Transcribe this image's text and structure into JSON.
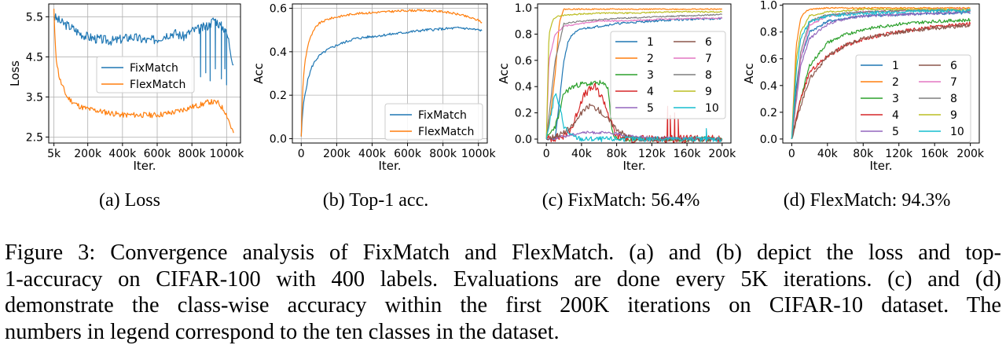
{
  "caption": {
    "lines": [
      "Figure 3: Convergence analysis of FixMatch and FlexMatch. (a) and (b) depict the loss and top-",
      "1-accuracy on CIFAR-100 with 400 labels. Evaluations are done every 5K iterations. (c) and (d)",
      "demonstrate the class-wise accuracy within the first 200K iterations on CIFAR-10 dataset. The",
      "numbers in legend correspond to the ten classes in the dataset."
    ]
  },
  "colors": {
    "c1": "#1f77b4",
    "c2": "#ff7f0e",
    "c3": "#2ca02c",
    "c4": "#d62728",
    "c5": "#9467bd",
    "c6": "#8c564b",
    "c7": "#e377c2",
    "c8": "#7f7f7f",
    "c9": "#bcbd22",
    "c10": "#17becf"
  },
  "chart_data": [
    {
      "id": "a",
      "type": "line",
      "subcaption": "(a) Loss",
      "xlabel": "Iter.",
      "ylabel": "Loss",
      "xticks": [
        5,
        200,
        400,
        600,
        800,
        1000
      ],
      "xtick_labels": [
        "5k",
        "200k",
        "400k",
        "600k",
        "800k",
        "1000k"
      ],
      "yticks": [
        2.5,
        3.5,
        4.5,
        5.5
      ],
      "ytick_labels": [
        "2.5",
        "3.5",
        "4.5",
        "5.5"
      ],
      "xlim": [
        -25,
        1080
      ],
      "ylim": [
        2.35,
        5.82
      ],
      "grid": true,
      "legend_position": "center",
      "series": [
        {
          "name": "FixMatch",
          "color": "#1f77b4",
          "noise": 0.12,
          "seed": 3,
          "x": [
            5,
            20,
            50,
            100,
            150,
            200,
            250,
            300,
            350,
            400,
            450,
            500,
            550,
            600,
            650,
            700,
            750,
            800,
            850,
            900,
            930,
            960,
            990,
            1010,
            1025,
            1040
          ],
          "y": [
            5.5,
            5.45,
            5.35,
            5.25,
            5.1,
            5.0,
            4.95,
            4.92,
            4.9,
            4.95,
            5.0,
            4.95,
            4.9,
            4.95,
            5.05,
            5.1,
            5.0,
            5.15,
            5.2,
            5.3,
            5.45,
            5.3,
            5.2,
            4.95,
            4.6,
            4.3
          ]
        },
        {
          "name": "FlexMatch",
          "color": "#ff7f0e",
          "noise": 0.07,
          "seed": 11,
          "x": [
            5,
            10,
            20,
            35,
            50,
            80,
            120,
            160,
            200,
            300,
            400,
            500,
            600,
            700,
            800,
            850,
            900,
            950,
            990,
            1010,
            1025,
            1040
          ],
          "y": [
            5.7,
            5.0,
            4.4,
            4.0,
            3.8,
            3.5,
            3.35,
            3.25,
            3.2,
            3.12,
            3.05,
            3.05,
            3.05,
            3.12,
            3.25,
            3.3,
            3.38,
            3.35,
            3.15,
            2.95,
            2.75,
            2.6
          ]
        }
      ],
      "annotations": [
        {
          "series": 0,
          "spikes": [
            [
              850,
              4.0
            ],
            [
              880,
              4.1
            ],
            [
              905,
              3.9
            ],
            [
              935,
              4.2
            ],
            [
              970,
              3.95
            ],
            [
              990,
              4.2
            ],
            [
              1000,
              3.8
            ]
          ]
        }
      ]
    },
    {
      "id": "b",
      "type": "line",
      "subcaption": "(b) Top-1 acc.",
      "xlabel": "Iter.",
      "ylabel": "Acc",
      "xticks": [
        0,
        200,
        400,
        600,
        800,
        1000
      ],
      "xtick_labels": [
        "0",
        "200k",
        "400k",
        "600k",
        "800k",
        "1000k"
      ],
      "yticks": [
        0.0,
        0.2,
        0.4,
        0.6
      ],
      "ytick_labels": [
        "0.0",
        "0.2",
        "0.4",
        "0.6"
      ],
      "xlim": [
        -50,
        1050
      ],
      "ylim": [
        -0.02,
        0.62
      ],
      "grid": true,
      "legend_position": "lower right",
      "series": [
        {
          "name": "FixMatch",
          "color": "#1f77b4",
          "noise": 0.006,
          "seed": 5,
          "x": [
            0,
            5,
            10,
            20,
            40,
            60,
            80,
            100,
            150,
            200,
            300,
            400,
            500,
            600,
            700,
            800,
            900,
            1000,
            1020
          ],
          "y": [
            0.01,
            0.08,
            0.14,
            0.2,
            0.28,
            0.33,
            0.36,
            0.38,
            0.41,
            0.43,
            0.46,
            0.47,
            0.48,
            0.49,
            0.5,
            0.505,
            0.51,
            0.5,
            0.497
          ]
        },
        {
          "name": "FlexMatch",
          "color": "#ff7f0e",
          "noise": 0.005,
          "seed": 9,
          "x": [
            0,
            5,
            10,
            20,
            40,
            60,
            80,
            100,
            150,
            200,
            300,
            400,
            500,
            600,
            700,
            800,
            900,
            1000,
            1020
          ],
          "y": [
            0.01,
            0.15,
            0.25,
            0.35,
            0.44,
            0.48,
            0.51,
            0.53,
            0.55,
            0.56,
            0.575,
            0.58,
            0.585,
            0.59,
            0.59,
            0.585,
            0.57,
            0.545,
            0.535
          ]
        }
      ]
    },
    {
      "id": "c",
      "type": "line",
      "subcaption": "(c) FixMatch: 56.4%",
      "xlabel": "Iter.",
      "ylabel": "Acc",
      "xticks": [
        0,
        40,
        80,
        120,
        160,
        200
      ],
      "xtick_labels": [
        "0",
        "40k",
        "80k",
        "120k",
        "160k",
        "200k"
      ],
      "yticks": [
        0.0,
        0.2,
        0.4,
        0.6,
        0.8,
        1.0
      ],
      "ytick_labels": [
        "0.0",
        "0.2",
        "0.4",
        "0.6",
        "0.8",
        "1.0"
      ],
      "xlim": [
        -10,
        210
      ],
      "ylim": [
        -0.03,
        1.03
      ],
      "grid": false,
      "legend_position": "right",
      "series": [
        {
          "name": "1",
          "color": "#1f77b4",
          "noise": 0.008,
          "seed": 21,
          "x": [
            0,
            10,
            15,
            20,
            25,
            30,
            40,
            60,
            80,
            100,
            120,
            150,
            200
          ],
          "y": [
            0.0,
            0.0,
            0.3,
            0.6,
            0.75,
            0.8,
            0.84,
            0.86,
            0.88,
            0.89,
            0.9,
            0.91,
            0.92
          ]
        },
        {
          "name": "2",
          "color": "#ff7f0e",
          "noise": 0.004,
          "seed": 22,
          "x": [
            0,
            5,
            10,
            15,
            20,
            40,
            80,
            120,
            160,
            200
          ],
          "y": [
            0.0,
            0.2,
            0.5,
            0.9,
            0.99,
            0.99,
            0.99,
            0.99,
            0.99,
            0.99
          ]
        },
        {
          "name": "3",
          "color": "#2ca02c",
          "noise": 0.02,
          "seed": 23,
          "x": [
            0,
            5,
            10,
            15,
            20,
            30,
            40,
            50,
            60,
            70,
            75,
            80,
            100,
            150,
            200
          ],
          "y": [
            0.0,
            0.05,
            0.1,
            0.2,
            0.35,
            0.4,
            0.42,
            0.42,
            0.43,
            0.4,
            0.05,
            0.0,
            0.0,
            0.0,
            0.0
          ]
        },
        {
          "name": "4",
          "color": "#d62728",
          "noise": 0.03,
          "seed": 24,
          "x": [
            0,
            20,
            30,
            35,
            40,
            45,
            50,
            55,
            60,
            65,
            70,
            75,
            80,
            100,
            200
          ],
          "y": [
            0.0,
            0.02,
            0.1,
            0.2,
            0.3,
            0.35,
            0.38,
            0.4,
            0.35,
            0.3,
            0.2,
            0.1,
            0.02,
            0.0,
            0.0
          ]
        },
        {
          "name": "5",
          "color": "#9467bd",
          "noise": 0.01,
          "seed": 25,
          "x": [
            0,
            20,
            40,
            60,
            80,
            100,
            120,
            200
          ],
          "y": [
            0.0,
            0.02,
            0.05,
            0.05,
            0.04,
            0.02,
            0.01,
            0.0
          ]
        },
        {
          "name": "6",
          "color": "#8c564b",
          "noise": 0.02,
          "seed": 26,
          "x": [
            0,
            20,
            30,
            40,
            50,
            60,
            70,
            80,
            90,
            100,
            200
          ],
          "y": [
            0.0,
            0.05,
            0.1,
            0.2,
            0.26,
            0.22,
            0.15,
            0.08,
            0.03,
            0.0,
            0.0
          ]
        },
        {
          "name": "7",
          "color": "#e377c2",
          "noise": 0.005,
          "seed": 27,
          "x": [
            0,
            3,
            10,
            20,
            40,
            60,
            80,
            120,
            160,
            200
          ],
          "y": [
            0.0,
            0.6,
            0.8,
            0.86,
            0.88,
            0.9,
            0.9,
            0.91,
            0.92,
            0.92
          ]
        },
        {
          "name": "8",
          "color": "#7f7f7f",
          "noise": 0.005,
          "seed": 28,
          "x": [
            0,
            10,
            20,
            40,
            80,
            120,
            160,
            200
          ],
          "y": [
            0.0,
            0.6,
            0.88,
            0.9,
            0.92,
            0.93,
            0.94,
            0.95
          ]
        },
        {
          "name": "9",
          "color": "#bcbd22",
          "noise": 0.005,
          "seed": 29,
          "x": [
            0,
            3,
            8,
            15,
            30,
            60,
            100,
            140,
            200
          ],
          "y": [
            0.0,
            0.8,
            0.92,
            0.94,
            0.95,
            0.96,
            0.96,
            0.97,
            0.97
          ]
        },
        {
          "name": "10",
          "color": "#17becf",
          "noise": 0.02,
          "seed": 30,
          "x": [
            0,
            10,
            15,
            20,
            25,
            30,
            40,
            60,
            80,
            200
          ],
          "y": [
            0.0,
            0.35,
            0.25,
            0.1,
            0.05,
            0.02,
            0.0,
            0.0,
            0.0,
            0.0
          ]
        }
      ],
      "spikes": [
        {
          "series": 3,
          "points": [
            [
              138,
              0.25
            ],
            [
              141,
              0.18
            ],
            [
              146,
              0.2
            ],
            [
              150,
              0.15
            ]
          ]
        },
        {
          "series": 9,
          "points": [
            [
              182,
              0.08
            ]
          ]
        }
      ]
    },
    {
      "id": "d",
      "type": "line",
      "subcaption": "(d) FlexMatch: 94.3%",
      "xlabel": "Iter.",
      "ylabel": "Acc",
      "xticks": [
        0,
        40,
        80,
        120,
        160,
        200
      ],
      "xtick_labels": [
        "0",
        "40k",
        "80k",
        "120k",
        "160k",
        "200k"
      ],
      "yticks": [
        0.0,
        0.2,
        0.4,
        0.6,
        0.8,
        1.0
      ],
      "ytick_labels": [
        "0.0",
        "0.2",
        "0.4",
        "0.6",
        "0.8",
        "1.0"
      ],
      "xlim": [
        -10,
        210
      ],
      "ylim": [
        -0.03,
        1.01
      ],
      "grid": false,
      "legend_position": "lower right",
      "series": [
        {
          "name": "1",
          "color": "#1f77b4",
          "noise": 0.01,
          "seed": 41,
          "x": [
            0,
            5,
            10,
            20,
            40,
            60,
            80,
            120,
            160,
            200
          ],
          "y": [
            0.0,
            0.4,
            0.6,
            0.8,
            0.88,
            0.9,
            0.92,
            0.93,
            0.94,
            0.94
          ]
        },
        {
          "name": "2",
          "color": "#ff7f0e",
          "noise": 0.005,
          "seed": 42,
          "x": [
            0,
            5,
            10,
            15,
            20,
            40,
            80,
            120,
            160,
            200
          ],
          "y": [
            0.0,
            0.7,
            0.9,
            0.95,
            0.97,
            0.98,
            0.98,
            0.98,
            0.98,
            0.98
          ]
        },
        {
          "name": "3",
          "color": "#2ca02c",
          "noise": 0.012,
          "seed": 43,
          "x": [
            0,
            10,
            20,
            40,
            60,
            80,
            120,
            160,
            200
          ],
          "y": [
            0.0,
            0.3,
            0.55,
            0.72,
            0.78,
            0.82,
            0.86,
            0.88,
            0.89
          ]
        },
        {
          "name": "4",
          "color": "#d62728",
          "noise": 0.015,
          "seed": 44,
          "x": [
            0,
            10,
            20,
            40,
            60,
            80,
            120,
            160,
            200
          ],
          "y": [
            0.0,
            0.3,
            0.5,
            0.62,
            0.7,
            0.75,
            0.8,
            0.84,
            0.86
          ]
        },
        {
          "name": "5",
          "color": "#9467bd",
          "noise": 0.01,
          "seed": 45,
          "x": [
            0,
            10,
            20,
            40,
            60,
            80,
            120,
            160,
            200
          ],
          "y": [
            0.0,
            0.55,
            0.75,
            0.86,
            0.9,
            0.92,
            0.93,
            0.94,
            0.95
          ]
        },
        {
          "name": "6",
          "color": "#8c564b",
          "noise": 0.015,
          "seed": 46,
          "x": [
            0,
            10,
            20,
            40,
            60,
            80,
            120,
            160,
            200
          ],
          "y": [
            0.0,
            0.25,
            0.45,
            0.62,
            0.7,
            0.75,
            0.8,
            0.83,
            0.85
          ]
        },
        {
          "name": "7",
          "color": "#e377c2",
          "noise": 0.008,
          "seed": 47,
          "x": [
            0,
            10,
            20,
            40,
            80,
            120,
            160,
            200
          ],
          "y": [
            0.0,
            0.6,
            0.85,
            0.92,
            0.95,
            0.96,
            0.97,
            0.97
          ]
        },
        {
          "name": "8",
          "color": "#7f7f7f",
          "noise": 0.008,
          "seed": 48,
          "x": [
            0,
            10,
            20,
            40,
            80,
            120,
            160,
            200
          ],
          "y": [
            0.0,
            0.65,
            0.88,
            0.93,
            0.95,
            0.96,
            0.96,
            0.96
          ]
        },
        {
          "name": "9",
          "color": "#bcbd22",
          "noise": 0.006,
          "seed": 49,
          "x": [
            0,
            5,
            10,
            20,
            40,
            80,
            120,
            160,
            200
          ],
          "y": [
            0.0,
            0.6,
            0.8,
            0.92,
            0.95,
            0.97,
            0.97,
            0.97,
            0.97
          ]
        },
        {
          "name": "10",
          "color": "#17becf",
          "noise": 0.012,
          "seed": 50,
          "x": [
            0,
            5,
            10,
            20,
            40,
            80,
            120,
            160,
            200
          ],
          "y": [
            0.0,
            0.5,
            0.75,
            0.88,
            0.92,
            0.94,
            0.95,
            0.96,
            0.96
          ]
        }
      ]
    }
  ]
}
